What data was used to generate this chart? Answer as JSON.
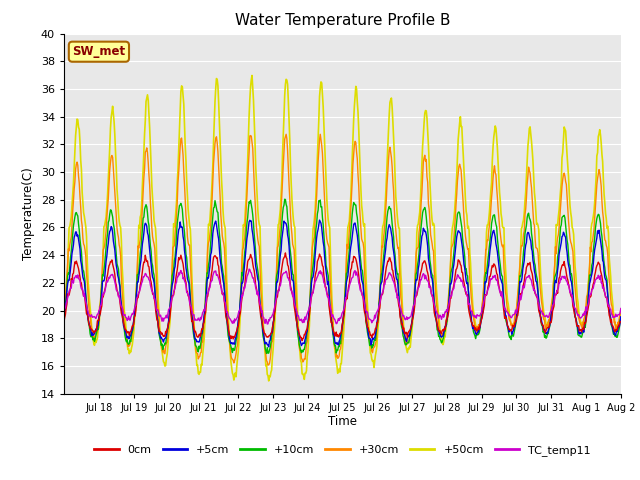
{
  "title": "Water Temperature Profile B",
  "xlabel": "Time",
  "ylabel": "Temperature(C)",
  "ylim": [
    14,
    40
  ],
  "yticks": [
    14,
    16,
    18,
    20,
    22,
    24,
    26,
    28,
    30,
    32,
    34,
    36,
    38,
    40
  ],
  "series": {
    "0cm": {
      "color": "#dd0000",
      "lw": 1.0
    },
    "+5cm": {
      "color": "#0000dd",
      "lw": 1.0
    },
    "+10cm": {
      "color": "#00bb00",
      "lw": 1.0
    },
    "+30cm": {
      "color": "#ff8800",
      "lw": 1.0
    },
    "+50cm": {
      "color": "#dddd00",
      "lw": 1.2
    },
    "TC_temp11": {
      "color": "#cc00cc",
      "lw": 1.0
    }
  },
  "annotation_label": "SW_met",
  "annotation_color": "#880000",
  "annotation_bg": "#ffff99",
  "annotation_border": "#aa6600",
  "background_color": "#e8e8e8",
  "grid_color": "#ffffff",
  "fig_bg": "#ffffff",
  "tick_positions": [
    1,
    2,
    3,
    4,
    5,
    6,
    7,
    8,
    9,
    10,
    11,
    12,
    13,
    14,
    15,
    16
  ],
  "tick_labels": [
    "Jul 18",
    "Jul 19",
    "Jul 20",
    "Jul 21",
    "Jul 22",
    "Jul 23",
    "Jul 24",
    "Jul 25",
    "Jul 26",
    "Jul 27",
    "Jul 28",
    "Jul 29",
    "Jul 30",
    "Jul 31",
    "Aug 1",
    "Aug 2"
  ]
}
